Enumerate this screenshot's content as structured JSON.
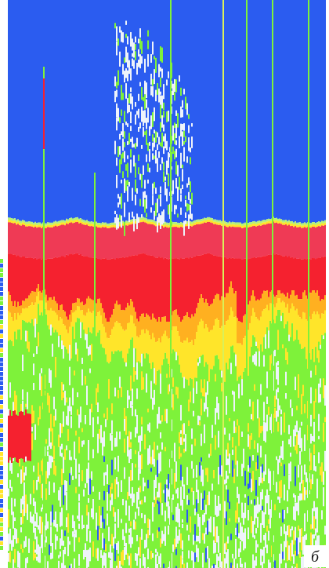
{
  "panel_label": "б"
}
